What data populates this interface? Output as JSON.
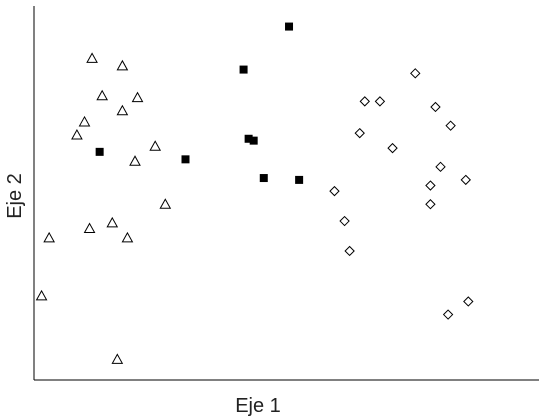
{
  "chart_data": {
    "type": "scatter",
    "title": "",
    "xlabel": "Eje 1",
    "ylabel": "Eje 2",
    "xlim": [
      0,
      100
    ],
    "ylim": [
      0,
      100
    ],
    "grid": false,
    "legend": "none",
    "series": [
      {
        "marker": "triangle-open",
        "color": "#000000",
        "points": [
          [
            1.5,
            22.5
          ],
          [
            3.0,
            38.0
          ],
          [
            8.5,
            65.5
          ],
          [
            10.0,
            69.0
          ],
          [
            11.0,
            40.5
          ],
          [
            13.5,
            76.0
          ],
          [
            15.5,
            42.0
          ],
          [
            16.5,
            5.5
          ],
          [
            17.5,
            72.0
          ],
          [
            17.5,
            84.0
          ],
          [
            18.5,
            38.0
          ],
          [
            20.0,
            58.5
          ],
          [
            20.5,
            75.5
          ],
          [
            24.0,
            62.5
          ],
          [
            26.0,
            47.0
          ],
          [
            11.5,
            86.0
          ]
        ]
      },
      {
        "marker": "square-filled",
        "color": "#000000",
        "points": [
          [
            13.0,
            61.0
          ],
          [
            30.0,
            59.0
          ],
          [
            41.5,
            83.0
          ],
          [
            42.5,
            64.5
          ],
          [
            43.5,
            64.0
          ],
          [
            45.5,
            54.0
          ],
          [
            50.5,
            94.5
          ],
          [
            52.5,
            53.5
          ]
        ]
      },
      {
        "marker": "diamond-open",
        "color": "#000000",
        "points": [
          [
            59.5,
            50.5
          ],
          [
            61.5,
            42.5
          ],
          [
            62.5,
            34.5
          ],
          [
            64.5,
            66.0
          ],
          [
            65.5,
            74.5
          ],
          [
            68.5,
            74.5
          ],
          [
            71.0,
            62.0
          ],
          [
            75.5,
            82.0
          ],
          [
            78.5,
            52.0
          ],
          [
            78.5,
            47.0
          ],
          [
            79.5,
            73.0
          ],
          [
            80.5,
            57.0
          ],
          [
            82.0,
            17.5
          ],
          [
            82.5,
            68.0
          ],
          [
            85.5,
            53.5
          ],
          [
            86.0,
            21.0
          ]
        ]
      }
    ]
  }
}
